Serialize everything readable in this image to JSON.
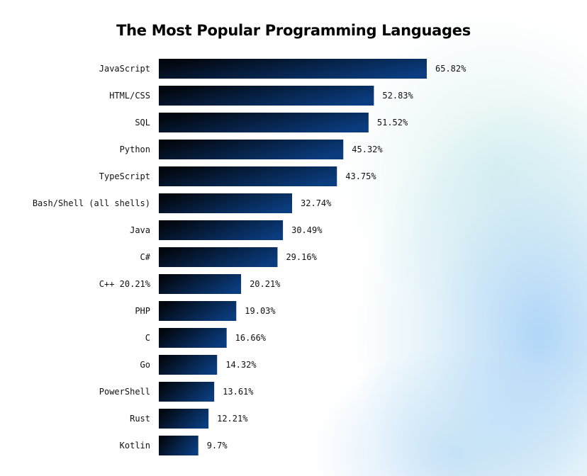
{
  "chart_data": {
    "type": "bar",
    "orientation": "horizontal",
    "title": "The Most Popular Programming Languages",
    "categories": [
      "JavaScript",
      "HTML/CSS",
      "SQL",
      "Python",
      "TypeScript",
      "Bash/Shell (all shells)",
      "Java",
      "C#",
      "C++ 20.21%",
      "PHP",
      "C",
      "Go",
      "PowerShell",
      "Rust",
      "Kotlin"
    ],
    "values": [
      65.82,
      52.83,
      51.52,
      45.32,
      43.75,
      32.74,
      30.49,
      29.16,
      20.21,
      19.03,
      16.66,
      14.32,
      13.61,
      12.21,
      9.7
    ],
    "data_labels": [
      "65.82%",
      "52.83%",
      "51.52%",
      "45.32%",
      "43.75%",
      "32.74%",
      "30.49%",
      "29.16%",
      "20.21%",
      "19.03%",
      "16.66%",
      "14.32%",
      "13.61%",
      "12.21%",
      "9.7%"
    ],
    "xlabel": "",
    "ylabel": "",
    "grid": false,
    "bar_gradient": [
      "#03070f",
      "#0a3d80"
    ]
  }
}
